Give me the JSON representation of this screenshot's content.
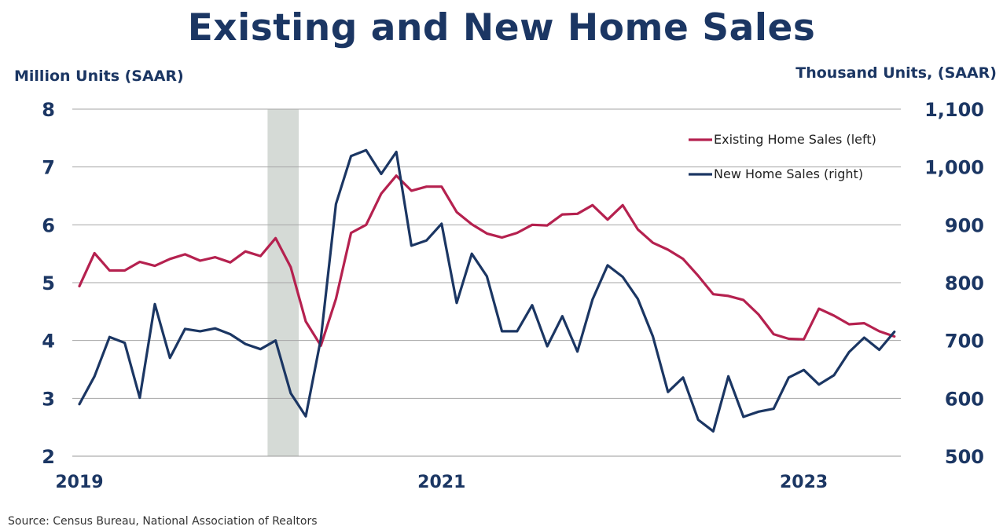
{
  "chart_data": {
    "type": "line",
    "title": "Existing and New Home Sales",
    "ylabel_left": "Million Units (SAAR)",
    "ylabel_right": "Thousand Units, (SAAR)",
    "source": "Source:  Census Bureau, National Association of Realtors",
    "ylim_left": [
      2,
      8
    ],
    "ylim_right": [
      500,
      1100
    ],
    "yticks_left": [
      "2",
      "3",
      "4",
      "5",
      "6",
      "7",
      "8"
    ],
    "yticks_right": [
      "500",
      "600",
      "700",
      "800",
      "900",
      "1,000",
      "1,100"
    ],
    "xticks": [
      {
        "label": "2019",
        "index": 0
      },
      {
        "label": "2021",
        "index": 24
      },
      {
        "label": "2023",
        "index": 48
      }
    ],
    "x_start": "2019-01",
    "x_end": "2023-07",
    "grid": true,
    "legend_position": "top-right",
    "shaded_region": {
      "label": "recession",
      "start_index": 13,
      "end_index": 15
    },
    "series": [
      {
        "name": "Existing Home Sales (left)",
        "axis": "left",
        "color": "#b5214f",
        "values": [
          4.94,
          5.51,
          5.21,
          5.21,
          5.36,
          5.29,
          5.41,
          5.49,
          5.38,
          5.44,
          5.35,
          5.54,
          5.46,
          5.77,
          5.27,
          4.33,
          3.91,
          4.72,
          5.86,
          6.0,
          6.54,
          6.85,
          6.59,
          6.66,
          6.66,
          6.22,
          6.01,
          5.85,
          5.78,
          5.86,
          6.0,
          5.99,
          6.18,
          6.19,
          6.34,
          6.09,
          6.34,
          5.92,
          5.69,
          5.57,
          5.41,
          5.12,
          4.8,
          4.77,
          4.7,
          4.45,
          4.11,
          4.03,
          4.02,
          4.55,
          4.43,
          4.28,
          4.3,
          4.16,
          4.07
        ]
      },
      {
        "name": "New Home Sales (right)",
        "axis": "right",
        "color": "#1b3663",
        "values": [
          590,
          638,
          706,
          696,
          601,
          763,
          670,
          720,
          716,
          721,
          711,
          694,
          685,
          700,
          609,
          569,
          703,
          936,
          1019,
          1029,
          988,
          1026,
          864,
          873,
          902,
          765,
          850,
          811,
          716,
          716,
          761,
          690,
          742,
          681,
          771,
          830,
          810,
          772,
          707,
          611,
          636,
          563,
          543,
          638,
          568,
          577,
          582,
          636,
          649,
          624,
          640,
          680,
          705,
          684,
          715
        ]
      }
    ]
  }
}
